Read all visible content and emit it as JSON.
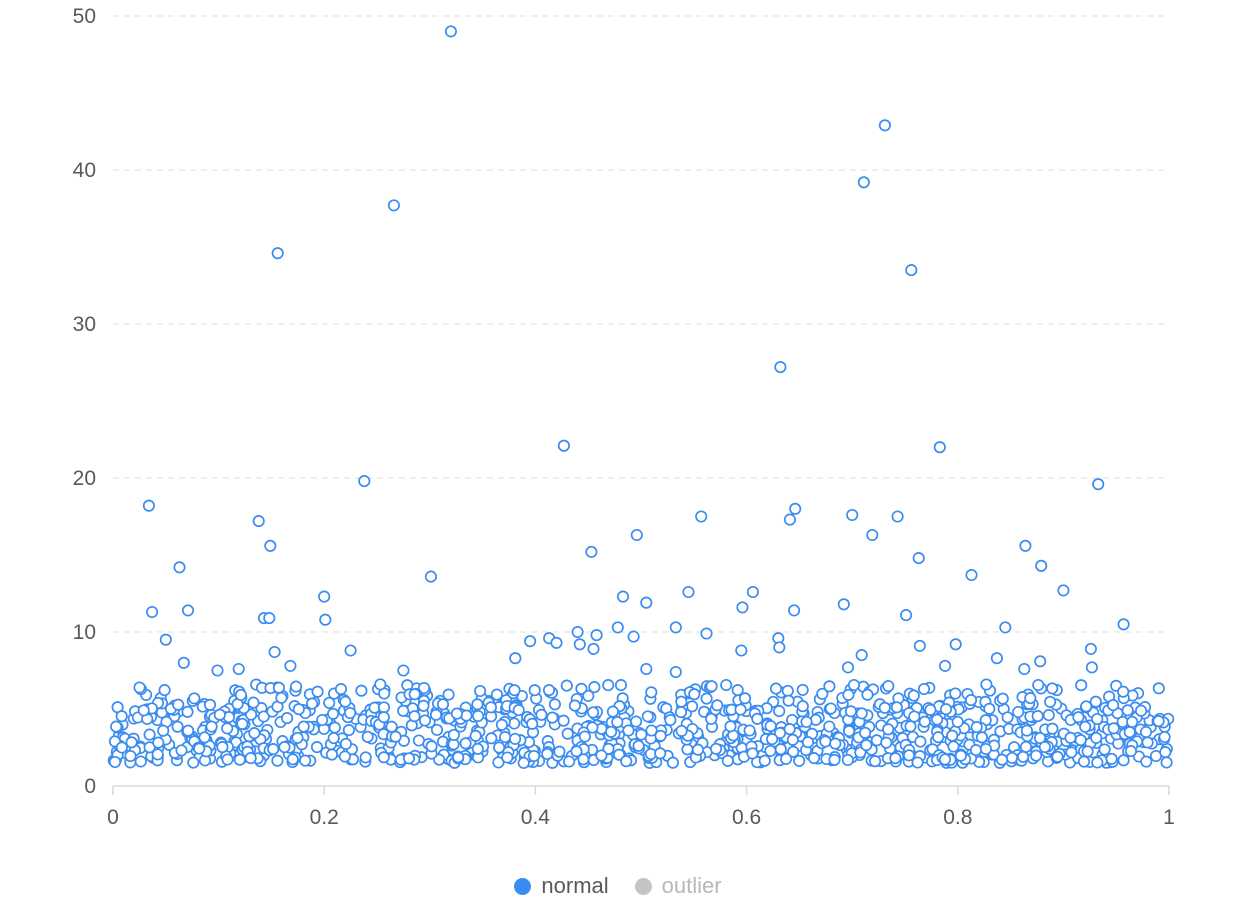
{
  "chart_data": {
    "type": "scatter",
    "title": "",
    "xlabel": "",
    "ylabel": "",
    "xlim": [
      0,
      1
    ],
    "ylim": [
      0,
      50
    ],
    "x_ticks": [
      "0",
      "0.2",
      "0.4",
      "0.6",
      "0.8",
      "1"
    ],
    "y_ticks": [
      "0",
      "10",
      "20",
      "30",
      "40",
      "50"
    ],
    "grid": {
      "horizontal": true,
      "style": "dashed"
    },
    "legend_position": "bottom-center",
    "colors": {
      "normal": "#3b8cf0",
      "outlier": "#c4c4c4",
      "grid": "#e3e3e3",
      "axis": "#d9d9d9",
      "text": "#595959"
    },
    "legend": [
      {
        "name": "normal",
        "color": "#3b8cf0",
        "active": true
      },
      {
        "name": "outlier",
        "color": "#c4c4c4",
        "active": false
      }
    ],
    "series": [
      {
        "name": "normal",
        "points": [
          [
            0.32,
            49.0
          ],
          [
            0.731,
            42.9
          ],
          [
            0.711,
            39.2
          ],
          [
            0.266,
            37.7
          ],
          [
            0.156,
            34.6
          ],
          [
            0.756,
            33.5
          ],
          [
            0.632,
            27.2
          ],
          [
            0.427,
            22.1
          ],
          [
            0.783,
            22.0
          ],
          [
            0.238,
            19.8
          ],
          [
            0.933,
            19.6
          ],
          [
            0.034,
            18.2
          ],
          [
            0.646,
            18.0
          ],
          [
            0.7,
            17.6
          ],
          [
            0.743,
            17.5
          ],
          [
            0.557,
            17.5
          ],
          [
            0.641,
            17.3
          ],
          [
            0.138,
            17.2
          ],
          [
            0.719,
            16.3
          ],
          [
            0.496,
            16.3
          ],
          [
            0.149,
            15.6
          ],
          [
            0.864,
            15.6
          ],
          [
            0.453,
            15.2
          ],
          [
            0.763,
            14.8
          ],
          [
            0.879,
            14.3
          ],
          [
            0.063,
            14.2
          ],
          [
            0.301,
            13.6
          ],
          [
            0.813,
            13.7
          ],
          [
            0.606,
            12.6
          ],
          [
            0.9,
            12.7
          ],
          [
            0.545,
            12.6
          ],
          [
            0.483,
            12.3
          ],
          [
            0.2,
            12.3
          ],
          [
            0.505,
            11.9
          ],
          [
            0.692,
            11.8
          ],
          [
            0.071,
            11.4
          ],
          [
            0.037,
            11.3
          ],
          [
            0.645,
            11.4
          ],
          [
            0.596,
            11.6
          ],
          [
            0.751,
            11.1
          ],
          [
            0.143,
            10.9
          ],
          [
            0.148,
            10.9
          ],
          [
            0.201,
            10.8
          ],
          [
            0.957,
            10.5
          ],
          [
            0.845,
            10.3
          ],
          [
            0.533,
            10.3
          ],
          [
            0.478,
            10.3
          ],
          [
            0.44,
            10.0
          ],
          [
            0.413,
            9.6
          ],
          [
            0.395,
            9.4
          ],
          [
            0.493,
            9.7
          ],
          [
            0.458,
            9.8
          ],
          [
            0.562,
            9.9
          ],
          [
            0.63,
            9.6
          ],
          [
            0.05,
            9.5
          ],
          [
            0.42,
            9.3
          ],
          [
            0.442,
            9.2
          ],
          [
            0.798,
            9.2
          ],
          [
            0.764,
            9.1
          ],
          [
            0.631,
            9.0
          ],
          [
            0.926,
            8.9
          ],
          [
            0.455,
            8.9
          ],
          [
            0.225,
            8.8
          ],
          [
            0.595,
            8.8
          ],
          [
            0.153,
            8.7
          ],
          [
            0.709,
            8.5
          ],
          [
            0.837,
            8.3
          ],
          [
            0.381,
            8.3
          ],
          [
            0.878,
            8.1
          ],
          [
            0.067,
            8.0
          ],
          [
            0.168,
            7.8
          ],
          [
            0.788,
            7.8
          ],
          [
            0.927,
            7.7
          ],
          [
            0.863,
            7.6
          ],
          [
            0.099,
            7.5
          ],
          [
            0.119,
            7.6
          ],
          [
            0.505,
            7.6
          ],
          [
            0.275,
            7.5
          ],
          [
            0.696,
            7.7
          ],
          [
            0.533,
            7.4
          ]
        ],
        "generated_cluster": {
          "count": 1120,
          "x_range": [
            0,
            1
          ],
          "y_range": [
            1.2,
            6.6
          ],
          "dense_y_range": [
            1.5,
            5.2
          ]
        }
      },
      {
        "name": "outlier",
        "points": []
      }
    ]
  }
}
